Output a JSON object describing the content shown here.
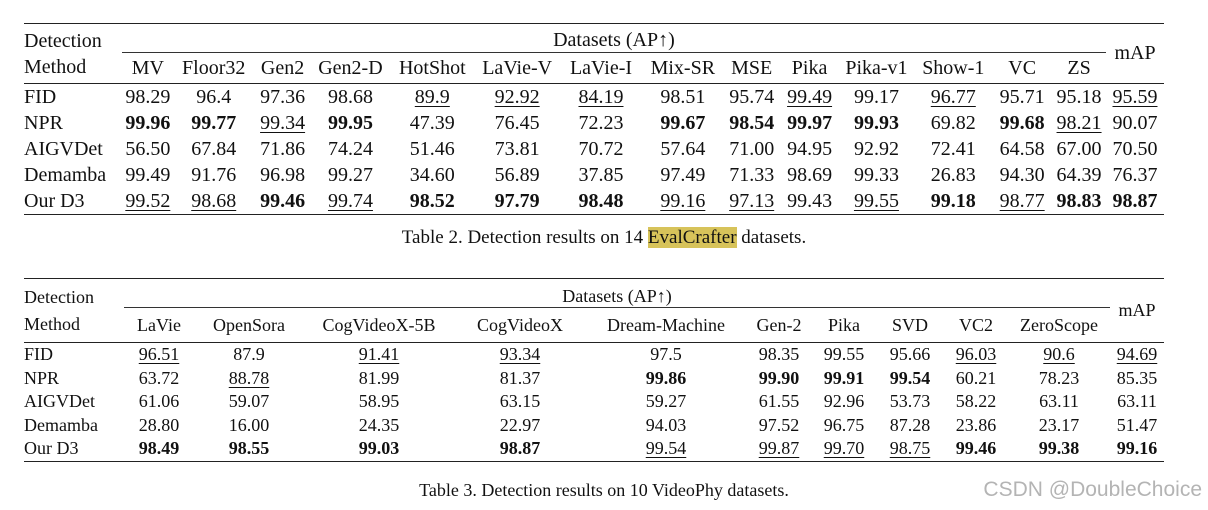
{
  "table2": {
    "header_detection": "Detection",
    "header_method": "Method",
    "header_group": "Datasets (AP↑)",
    "header_map": "mAP",
    "columns": [
      "MV",
      "Floor32",
      "Gen2",
      "Gen2-D",
      "HotShot",
      "LaVie-V",
      "LaVie-I",
      "Mix-SR",
      "MSE",
      "Pika",
      "Pika-v1",
      "Show-1",
      "VC",
      "ZS"
    ],
    "rows": [
      {
        "method": "FID",
        "values": [
          "98.29",
          "96.4",
          "97.36",
          "98.68",
          "89.9",
          "92.92",
          "84.19",
          "98.51",
          "95.74",
          "99.49",
          "99.17",
          "96.77",
          "95.71",
          "95.18",
          "95.59"
        ],
        "styles": [
          "",
          "",
          "",
          "",
          "u",
          "u",
          "u",
          "",
          "",
          "u",
          "",
          "u",
          "",
          "",
          "u"
        ]
      },
      {
        "method": "NPR",
        "values": [
          "99.96",
          "99.77",
          "99.34",
          "99.95",
          "47.39",
          "76.45",
          "72.23",
          "99.67",
          "98.54",
          "99.97",
          "99.93",
          "69.82",
          "99.68",
          "98.21",
          "90.07"
        ],
        "styles": [
          "b",
          "b",
          "u",
          "b",
          "",
          "",
          "",
          "b",
          "b",
          "b",
          "b",
          "",
          "b",
          "u",
          ""
        ]
      },
      {
        "method": "AIGVDet",
        "values": [
          "56.50",
          "67.84",
          "71.86",
          "74.24",
          "51.46",
          "73.81",
          "70.72",
          "57.64",
          "71.00",
          "94.95",
          "92.92",
          "72.41",
          "64.58",
          "67.00",
          "70.50"
        ],
        "styles": [
          "",
          "",
          "",
          "",
          "",
          "",
          "",
          "",
          "",
          "",
          "",
          "",
          "",
          "",
          ""
        ]
      },
      {
        "method": "Demamba",
        "values": [
          "99.49",
          "91.76",
          "96.98",
          "99.27",
          "34.60",
          "56.89",
          "37.85",
          "97.49",
          "71.33",
          "98.69",
          "99.33",
          "26.83",
          "94.30",
          "64.39",
          "76.37"
        ],
        "styles": [
          "",
          "",
          "",
          "",
          "",
          "",
          "",
          "",
          "",
          "",
          "",
          "",
          "",
          "",
          ""
        ]
      },
      {
        "method": "Our D3",
        "values": [
          "99.52",
          "98.68",
          "99.46",
          "99.74",
          "98.52",
          "97.79",
          "98.48",
          "99.16",
          "97.13",
          "99.43",
          "99.55",
          "99.18",
          "98.77",
          "98.83",
          "98.87"
        ],
        "styles": [
          "u",
          "u",
          "b",
          "u",
          "b",
          "b",
          "b",
          "u",
          "u",
          "",
          "u",
          "b",
          "u",
          "b",
          "b"
        ]
      }
    ],
    "caption_prefix": "Table 2. Detection results on 14 ",
    "caption_highlight": "EvalCrafter",
    "caption_suffix": " datasets."
  },
  "table3": {
    "header_detection": "Detection",
    "header_method": "Method",
    "header_group": "Datasets (AP↑)",
    "header_map": "mAP",
    "columns": [
      "LaVie",
      "OpenSora",
      "CogVideoX-5B",
      "CogVideoX",
      "Dream-Machine",
      "Gen-2",
      "Pika",
      "SVD",
      "VC2",
      "ZeroScope"
    ],
    "rows": [
      {
        "method": "FID",
        "values": [
          "96.51",
          "87.9",
          "91.41",
          "93.34",
          "97.5",
          "98.35",
          "99.55",
          "95.66",
          "96.03",
          "90.6",
          "94.69"
        ],
        "styles": [
          "u",
          "",
          "u",
          "u",
          "",
          "",
          "",
          "",
          "u",
          "u",
          "u"
        ]
      },
      {
        "method": "NPR",
        "values": [
          "63.72",
          "88.78",
          "81.99",
          "81.37",
          "99.86",
          "99.90",
          "99.91",
          "99.54",
          "60.21",
          "78.23",
          "85.35"
        ],
        "styles": [
          "",
          "u",
          "",
          "",
          "b",
          "b",
          "b",
          "b",
          "",
          "",
          ""
        ]
      },
      {
        "method": "AIGVDet",
        "values": [
          "61.06",
          "59.07",
          "58.95",
          "63.15",
          "59.27",
          "61.55",
          "92.96",
          "53.73",
          "58.22",
          "63.11",
          "63.11"
        ],
        "styles": [
          "",
          "",
          "",
          "",
          "",
          "",
          "",
          "",
          "",
          "",
          ""
        ]
      },
      {
        "method": "Demamba",
        "values": [
          "28.80",
          "16.00",
          "24.35",
          "22.97",
          "94.03",
          "97.52",
          "96.75",
          "87.28",
          "23.86",
          "23.17",
          "51.47"
        ],
        "styles": [
          "",
          "",
          "",
          "",
          "",
          "",
          "",
          "",
          "",
          "",
          ""
        ]
      },
      {
        "method": "Our D3",
        "values": [
          "98.49",
          "98.55",
          "99.03",
          "98.87",
          "99.54",
          "99.87",
          "99.70",
          "98.75",
          "99.46",
          "99.38",
          "99.16"
        ],
        "styles": [
          "b",
          "b",
          "b",
          "b",
          "u",
          "u",
          "u",
          "u",
          "b",
          "b",
          "b"
        ]
      }
    ],
    "caption": "Table 3. Detection results on 10 VideoPhy datasets."
  },
  "watermark": "CSDN @DoubleChoice",
  "colors": {
    "highlight": "#d7c35a",
    "watermark": "#b4b4b4"
  }
}
